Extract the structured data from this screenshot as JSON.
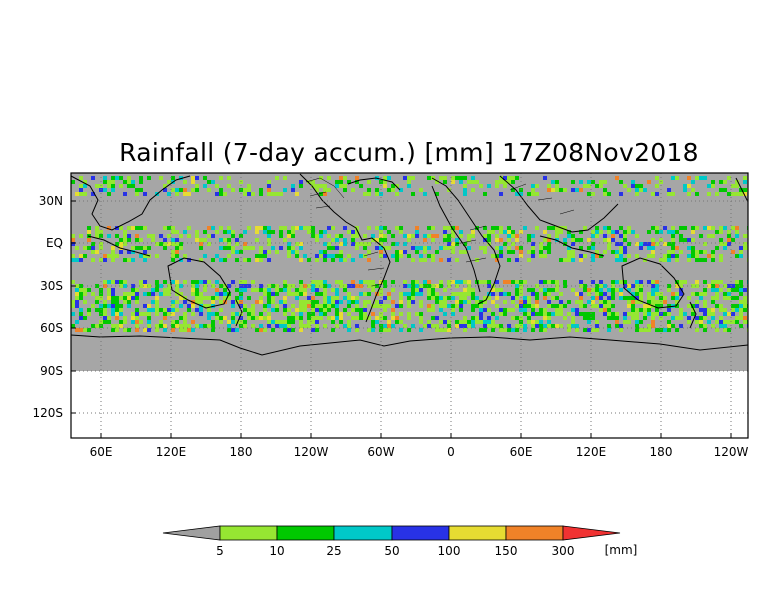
{
  "title": "Rainfall (7-day accum.) [mm] 17Z08Nov2018",
  "y_ticks": [
    "30N",
    "EQ",
    "30S",
    "60S",
    "90S",
    "120S"
  ],
  "x_ticks": [
    "60E",
    "120E",
    "180",
    "120W",
    "60W",
    "0",
    "60E",
    "120E",
    "180",
    "120W"
  ],
  "colorbar": {
    "labels": [
      "5",
      "10",
      "25",
      "50",
      "100",
      "150",
      "300"
    ],
    "unit": "[mm]",
    "colors": {
      "below": "#a0a0a0",
      "bins": [
        "#96e632",
        "#00c800",
        "#00c8c8",
        "#2832e6",
        "#e6dc32",
        "#f08228"
      ],
      "above": "#f03232"
    }
  },
  "map_colors": {
    "land_ocean_dry": "#a6a6a6",
    "coastline": "#000000",
    "empty_region": "#ffffff"
  }
}
